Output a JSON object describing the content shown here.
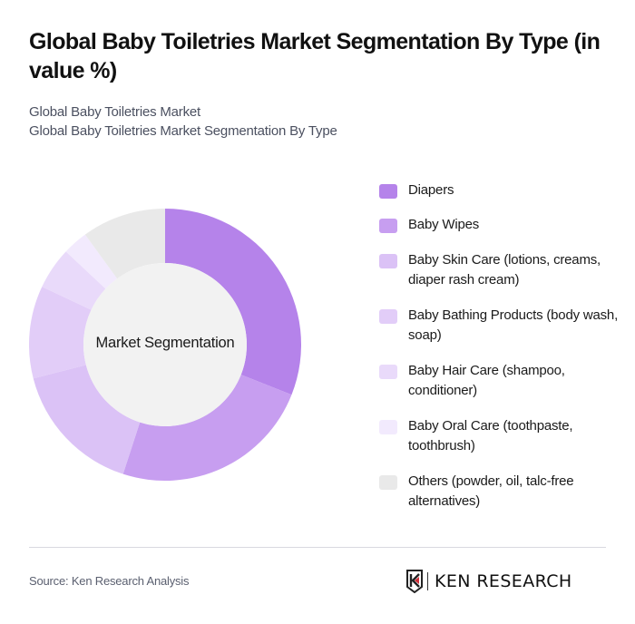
{
  "header": {
    "title": "Global Baby Toiletries Market Segmentation By Type (in value %)",
    "subtitle_line1": "Global Baby Toiletries Market",
    "subtitle_line2": "Global Baby Toiletries Market Segmentation By Type"
  },
  "chart": {
    "center_label": "Market Segmentation"
  },
  "legend": [
    {
      "label": "Diapers",
      "color": "#b583ea"
    },
    {
      "label": "Baby Wipes",
      "color": "#c79ef0"
    },
    {
      "label": "Baby Skin Care (lotions, creams, diaper rash cream)",
      "color": "#dbc2f6"
    },
    {
      "label": "Baby Bathing Products (body wash, soap)",
      "color": "#e2cdf8"
    },
    {
      "label": "Baby Hair Care (shampoo, conditioner)",
      "color": "#e9dafa"
    },
    {
      "label": "Baby Oral Care (toothpaste, toothbrush)",
      "color": "#f2eafd"
    },
    {
      "label": "Others (powder, oil, talc-free alternatives)",
      "color": "#e9e9e9"
    }
  ],
  "footer": {
    "source": "Source: Ken Research Analysis",
    "logo_text": "KEN RESEARCH"
  },
  "chart_data": {
    "type": "pie",
    "donut": true,
    "title": "Global Baby Toiletries Market Segmentation By Type (in value %)",
    "center_label": "Market Segmentation",
    "categories": [
      "Diapers",
      "Baby Wipes",
      "Baby Skin Care (lotions, creams, diaper rash cream)",
      "Baby Bathing Products (body wash, soap)",
      "Baby Hair Care (shampoo, conditioner)",
      "Baby Oral Care (toothpaste, toothbrush)",
      "Others (powder, oil, talc-free alternatives)"
    ],
    "values": [
      31,
      24,
      16,
      11,
      5,
      3,
      10
    ],
    "colors": [
      "#b583ea",
      "#c79ef0",
      "#dbc2f6",
      "#e2cdf8",
      "#e9dafa",
      "#f2eafd",
      "#e9e9e9"
    ],
    "legend_position": "right",
    "start_angle": "top, clockwise"
  }
}
